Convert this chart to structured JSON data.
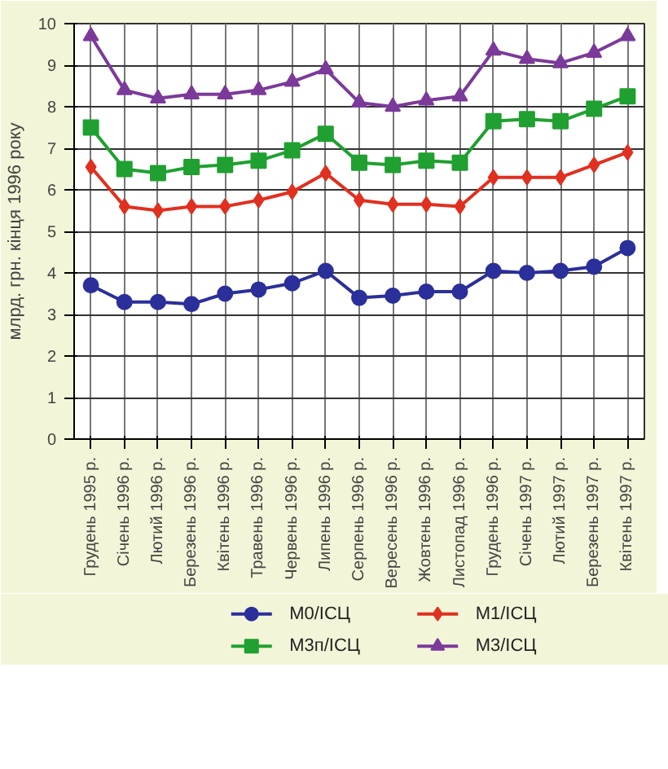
{
  "chart_data": {
    "type": "line",
    "ylabel": "млрд. грн. кінця 1996 року",
    "categories": [
      "Грудень 1995 р.",
      "Січень 1996 р.",
      "Лютий 1996 р.",
      "Березень 1996 р.",
      "Квітень 1996 р.",
      "Травень 1996 р.",
      "Червень 1996 р.",
      "Липень 1996 р.",
      "Серпень 1996 р.",
      "Вересень 1996 р.",
      "Жовтень 1996 р.",
      "Листопад 1996 р.",
      "Грудень 1996 р.",
      "Січень 1997 р.",
      "Лютий 1997 р.",
      "Березень 1997 р.",
      "Квітень 1997 р."
    ],
    "series": [
      {
        "name": "M0/ICЦ",
        "color": "#2b2f9a",
        "marker": "circle",
        "values": [
          3.7,
          3.3,
          3.3,
          3.25,
          3.5,
          3.6,
          3.75,
          4.05,
          3.4,
          3.45,
          3.55,
          3.55,
          4.05,
          4.0,
          4.05,
          4.15,
          4.6
        ]
      },
      {
        "name": "M1/ICЦ",
        "color": "#e03020",
        "marker": "diamond",
        "values": [
          6.55,
          5.6,
          5.5,
          5.6,
          5.6,
          5.75,
          5.95,
          6.4,
          5.75,
          5.65,
          5.65,
          5.6,
          6.3,
          6.3,
          6.3,
          6.6,
          6.9
        ]
      },
      {
        "name": "M3п/ICЦ",
        "color": "#20a030",
        "marker": "square",
        "values": [
          7.5,
          6.5,
          6.4,
          6.55,
          6.6,
          6.7,
          6.95,
          7.35,
          6.65,
          6.6,
          6.7,
          6.65,
          7.65,
          7.7,
          7.65,
          7.95,
          8.25
        ]
      },
      {
        "name": "M3/ICЦ",
        "color": "#7b3a9a",
        "marker": "triangle",
        "values": [
          9.7,
          8.4,
          8.2,
          8.3,
          8.3,
          8.4,
          8.6,
          8.9,
          8.1,
          8.0,
          8.15,
          8.25,
          9.35,
          9.15,
          9.05,
          9.3,
          9.7
        ]
      }
    ],
    "ylim": [
      0,
      10
    ],
    "yticks": [
      0,
      1,
      2,
      3,
      4,
      5,
      6,
      7,
      8,
      9,
      10
    ],
    "grid": true,
    "legend": "bottom",
    "line_style": "solid"
  }
}
